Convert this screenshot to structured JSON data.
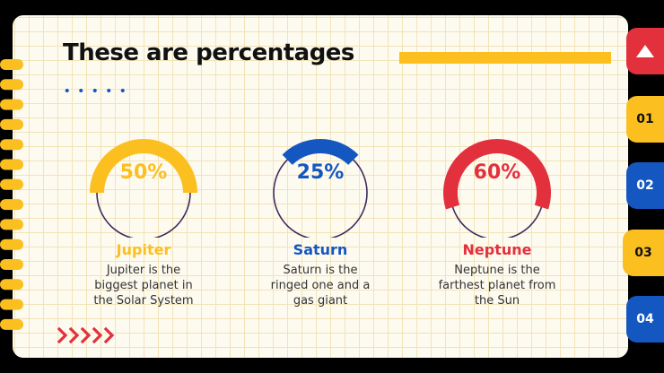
{
  "title": "These are percentages",
  "colors": {
    "yellow": "#fbbf1f",
    "blue": "#1557c0",
    "red": "#e3303d",
    "ring_outline": "#3d2a5c",
    "background": "#fdfaf0"
  },
  "stats": [
    {
      "percent_label": "50%",
      "value": 50,
      "name": "Jupiter",
      "desc_lines": [
        "Jupiter is the",
        "biggest planet in",
        "the Solar System"
      ],
      "color": "#fbbf1f"
    },
    {
      "percent_label": "25%",
      "value": 25,
      "name": "Saturn",
      "desc_lines": [
        "Saturn is the",
        "ringed one and a",
        "gas giant"
      ],
      "color": "#1557c0"
    },
    {
      "percent_label": "60%",
      "value": 60,
      "name": "Neptune",
      "desc_lines": [
        "Neptune is the",
        "farthest planet from",
        "the Sun"
      ],
      "color": "#e3303d"
    }
  ],
  "tabs": [
    {
      "label": "▲",
      "icon": "triangle-up-icon",
      "color": "#e3303d"
    },
    {
      "label": "01",
      "color": "#fbbf1f"
    },
    {
      "label": "02",
      "color": "#1557c0"
    },
    {
      "label": "03",
      "color": "#fbbf1f",
      "active": true
    },
    {
      "label": "04",
      "color": "#1557c0"
    }
  ]
}
